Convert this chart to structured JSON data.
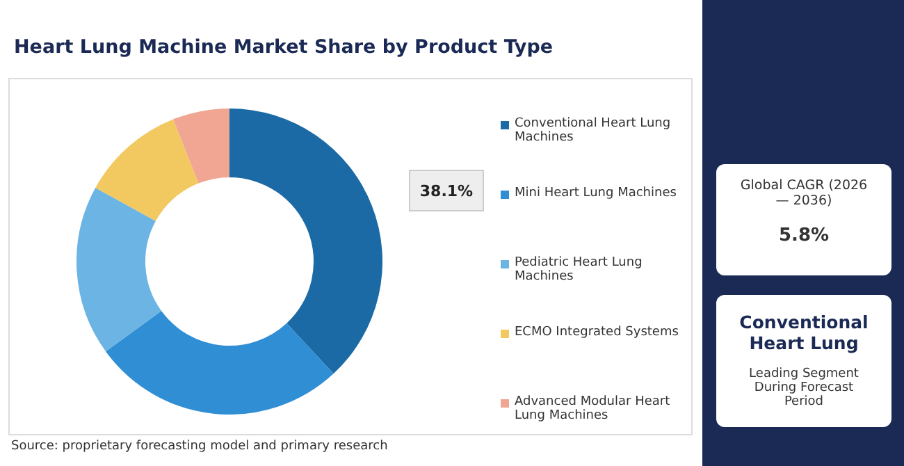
{
  "chart_data": {
    "type": "donut",
    "title": "Heart Lung Machine Market Share by Product Type",
    "categories": [
      "Conventional Heart Lung Machines",
      "Mini Heart Lung Machines",
      "Pediatric Heart Lung Machines",
      "ECMO Integrated Systems",
      "Advanced Modular Heart Lung Machines"
    ],
    "values": [
      38.1,
      26.9,
      18,
      11,
      6
    ],
    "value_labels": [
      "38.1%",
      null,
      null,
      null,
      null
    ],
    "colors": [
      "#1b6aa5",
      "#2f8ed4",
      "#6cb4e4",
      "#f2c960",
      "#f0a692"
    ],
    "legend": "right",
    "annotations": [
      "Global CAGR (2026 — 2036)",
      "5.8%",
      "Conventional Heart Lung",
      "Leading Segment During Forecast Period",
      "Source: proprietary forecasting model and primary research"
    ]
  }
}
